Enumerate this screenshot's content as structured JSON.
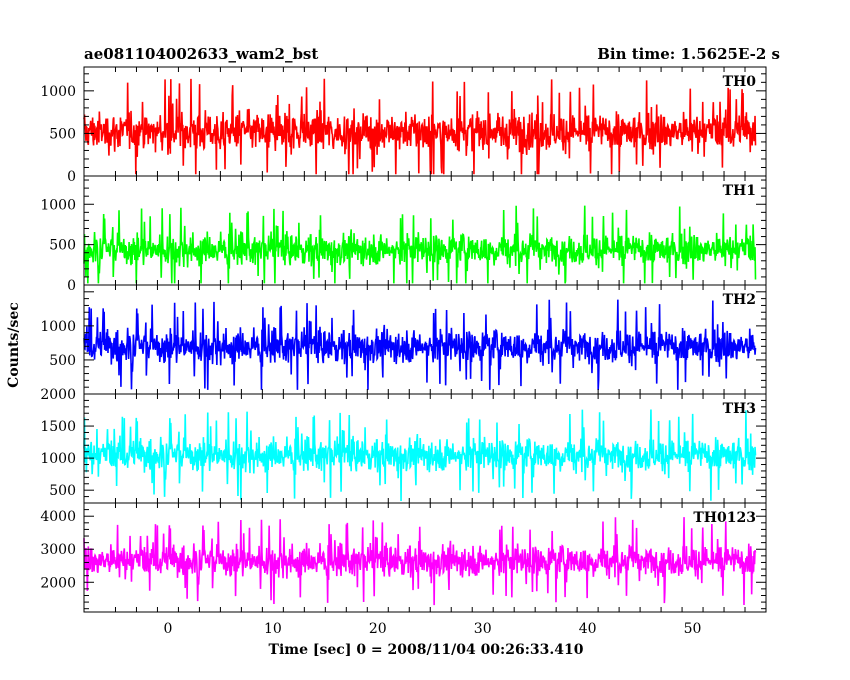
{
  "chart_data": {
    "type": "line",
    "title_left": "ae081104002633_wam2_bst",
    "title_right": "Bin time: 1.5625E-2 s",
    "xlabel": "Time [sec] 0 = 2008/11/04 00:26:33.410",
    "ylabel": "Counts/sec",
    "xlim": [
      -8,
      57
    ],
    "x_ticks": [
      0,
      10,
      20,
      30,
      40,
      50
    ],
    "x_range_data": [
      -8,
      56
    ],
    "panels": [
      {
        "name": "TH0",
        "color": "#ff0000",
        "ylim": [
          0,
          1280
        ],
        "ticks": [
          0,
          500,
          1000
        ],
        "mean": 520,
        "spread": 260,
        "lo": 20,
        "hi": 1280
      },
      {
        "name": "TH1",
        "color": "#00ff00",
        "ylim": [
          0,
          1350
        ],
        "ticks": [
          0,
          500,
          1000
        ],
        "mean": 440,
        "spread": 230,
        "lo": 20,
        "hi": 1350
      },
      {
        "name": "TH2",
        "color": "#0000ff",
        "ylim": [
          0,
          1600
        ],
        "ticks": [
          500,
          1000
        ],
        "mean": 700,
        "spread": 290,
        "lo": 60,
        "hi": 1600
      },
      {
        "name": "TH3",
        "color": "#00ffff",
        "ylim": [
          300,
          2000
        ],
        "ticks": [
          500,
          1000,
          1500,
          2000
        ],
        "mean": 1050,
        "spread": 300,
        "lo": 300,
        "hi": 2000
      },
      {
        "name": "TH0123",
        "color": "#ff00ff",
        "ylim": [
          1100,
          4400
        ],
        "ticks": [
          2000,
          3000,
          4000
        ],
        "mean": 2650,
        "spread": 560,
        "lo": 1100,
        "hi": 4400
      }
    ]
  }
}
